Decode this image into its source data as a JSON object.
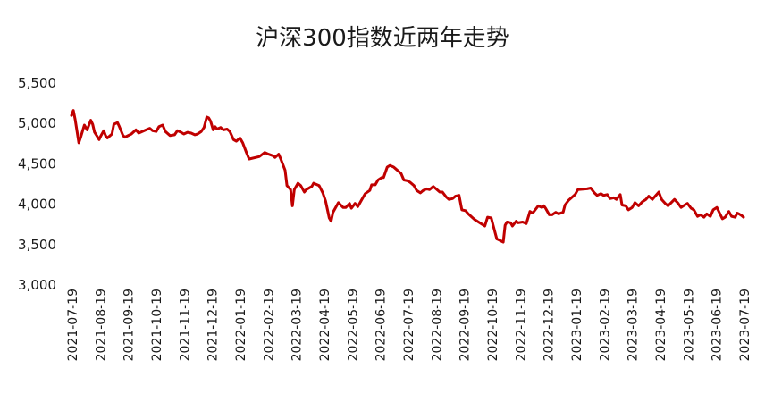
{
  "chart_data": {
    "type": "line",
    "title": "沪深300指数近两年走势",
    "xlabel": "",
    "ylabel": "",
    "ylim": [
      3000,
      5500
    ],
    "yticks": [
      3000,
      3500,
      4000,
      4500,
      5000,
      5500
    ],
    "ytick_labels": [
      "3,000",
      "3,500",
      "4,000",
      "4,500",
      "5,000",
      "5,500"
    ],
    "xlim": [
      "2021-07-19",
      "2023-07-19"
    ],
    "xtick_labels": [
      "2021-07-19",
      "2021-08-19",
      "2021-09-19",
      "2021-10-19",
      "2021-11-19",
      "2021-12-19",
      "2022-01-19",
      "2022-02-19",
      "2022-03-19",
      "2022-04-19",
      "2022-05-19",
      "2022-06-19",
      "2022-07-19",
      "2022-08-19",
      "2022-09-19",
      "2022-10-19",
      "2022-11-19",
      "2022-12-19",
      "2023-01-19",
      "2023-02-19",
      "2023-03-19",
      "2023-04-19",
      "2023-05-19",
      "2023-06-19",
      "2023-07-19"
    ],
    "grid": false,
    "legend": "none",
    "series": [
      {
        "color": "#c00000",
        "points": [
          [
            "2021-07-19",
            5100
          ],
          [
            "2021-07-21",
            5160
          ],
          [
            "2021-07-23",
            5050
          ],
          [
            "2021-07-27",
            4760
          ],
          [
            "2021-07-29",
            4830
          ],
          [
            "2021-08-02",
            4980
          ],
          [
            "2021-08-05",
            4920
          ],
          [
            "2021-08-09",
            5040
          ],
          [
            "2021-08-11",
            4990
          ],
          [
            "2021-08-13",
            4890
          ],
          [
            "2021-08-16",
            4840
          ],
          [
            "2021-08-18",
            4800
          ],
          [
            "2021-08-20",
            4850
          ],
          [
            "2021-08-23",
            4910
          ],
          [
            "2021-08-25",
            4850
          ],
          [
            "2021-08-27",
            4820
          ],
          [
            "2021-09-01",
            4870
          ],
          [
            "2021-09-03",
            4990
          ],
          [
            "2021-09-07",
            5010
          ],
          [
            "2021-09-09",
            4960
          ],
          [
            "2021-09-13",
            4850
          ],
          [
            "2021-09-15",
            4830
          ],
          [
            "2021-09-22",
            4870
          ],
          [
            "2021-09-27",
            4920
          ],
          [
            "2021-09-30",
            4880
          ],
          [
            "2021-10-08",
            4920
          ],
          [
            "2021-10-12",
            4940
          ],
          [
            "2021-10-15",
            4910
          ],
          [
            "2021-10-19",
            4900
          ],
          [
            "2021-10-22",
            4960
          ],
          [
            "2021-10-26",
            4980
          ],
          [
            "2021-10-29",
            4900
          ],
          [
            "2021-11-03",
            4850
          ],
          [
            "2021-11-08",
            4860
          ],
          [
            "2021-11-11",
            4910
          ],
          [
            "2021-11-15",
            4890
          ],
          [
            "2021-11-18",
            4870
          ],
          [
            "2021-11-22",
            4890
          ],
          [
            "2021-11-26",
            4880
          ],
          [
            "2021-11-30",
            4860
          ],
          [
            "2021-12-03",
            4870
          ],
          [
            "2021-12-07",
            4900
          ],
          [
            "2021-12-10",
            4950
          ],
          [
            "2021-12-13",
            5080
          ],
          [
            "2021-12-15",
            5070
          ],
          [
            "2021-12-17",
            5030
          ],
          [
            "2021-12-20",
            4920
          ],
          [
            "2021-12-22",
            4960
          ],
          [
            "2021-12-24",
            4930
          ],
          [
            "2021-12-28",
            4950
          ],
          [
            "2021-12-31",
            4920
          ],
          [
            "2022-01-04",
            4930
          ],
          [
            "2022-01-07",
            4900
          ],
          [
            "2022-01-11",
            4800
          ],
          [
            "2022-01-14",
            4780
          ],
          [
            "2022-01-18",
            4820
          ],
          [
            "2022-01-21",
            4760
          ],
          [
            "2022-01-25",
            4640
          ],
          [
            "2022-01-28",
            4560
          ],
          [
            "2022-02-08",
            4590
          ],
          [
            "2022-02-14",
            4640
          ],
          [
            "2022-02-18",
            4620
          ],
          [
            "2022-02-23",
            4600
          ],
          [
            "2022-02-25",
            4580
          ],
          [
            "2022-03-01",
            4620
          ],
          [
            "2022-03-03",
            4570
          ],
          [
            "2022-03-08",
            4420
          ],
          [
            "2022-03-10",
            4230
          ],
          [
            "2022-03-14",
            4180
          ],
          [
            "2022-03-16",
            3980
          ],
          [
            "2022-03-18",
            4180
          ],
          [
            "2022-03-22",
            4260
          ],
          [
            "2022-03-25",
            4230
          ],
          [
            "2022-03-29",
            4150
          ],
          [
            "2022-03-31",
            4180
          ],
          [
            "2022-04-06",
            4220
          ],
          [
            "2022-04-08",
            4260
          ],
          [
            "2022-04-12",
            4240
          ],
          [
            "2022-04-14",
            4230
          ],
          [
            "2022-04-18",
            4140
          ],
          [
            "2022-04-21",
            4040
          ],
          [
            "2022-04-25",
            3830
          ],
          [
            "2022-04-27",
            3790
          ],
          [
            "2022-04-29",
            3900
          ],
          [
            "2022-05-05",
            4020
          ],
          [
            "2022-05-10",
            3960
          ],
          [
            "2022-05-13",
            3960
          ],
          [
            "2022-05-17",
            4010
          ],
          [
            "2022-05-19",
            3950
          ],
          [
            "2022-05-23",
            4010
          ],
          [
            "2022-05-26",
            3970
          ],
          [
            "2022-05-31",
            4070
          ],
          [
            "2022-06-03",
            4130
          ],
          [
            "2022-06-08",
            4170
          ],
          [
            "2022-06-10",
            4240
          ],
          [
            "2022-06-14",
            4240
          ],
          [
            "2022-06-17",
            4300
          ],
          [
            "2022-06-21",
            4330
          ],
          [
            "2022-06-23",
            4330
          ],
          [
            "2022-06-27",
            4460
          ],
          [
            "2022-06-30",
            4480
          ],
          [
            "2022-07-04",
            4460
          ],
          [
            "2022-07-06",
            4440
          ],
          [
            "2022-07-08",
            4420
          ],
          [
            "2022-07-12",
            4380
          ],
          [
            "2022-07-15",
            4300
          ],
          [
            "2022-07-19",
            4290
          ],
          [
            "2022-07-22",
            4270
          ],
          [
            "2022-07-26",
            4230
          ],
          [
            "2022-07-29",
            4170
          ],
          [
            "2022-08-02",
            4140
          ],
          [
            "2022-08-05",
            4170
          ],
          [
            "2022-08-09",
            4190
          ],
          [
            "2022-08-12",
            4180
          ],
          [
            "2022-08-16",
            4220
          ],
          [
            "2022-08-19",
            4190
          ],
          [
            "2022-08-23",
            4150
          ],
          [
            "2022-08-26",
            4150
          ],
          [
            "2022-08-30",
            4090
          ],
          [
            "2022-09-02",
            4060
          ],
          [
            "2022-09-06",
            4070
          ],
          [
            "2022-09-09",
            4100
          ],
          [
            "2022-09-13",
            4110
          ],
          [
            "2022-09-16",
            3930
          ],
          [
            "2022-09-20",
            3920
          ],
          [
            "2022-09-23",
            3880
          ],
          [
            "2022-09-28",
            3830
          ],
          [
            "2022-09-30",
            3810
          ],
          [
            "2022-10-11",
            3730
          ],
          [
            "2022-10-14",
            3840
          ],
          [
            "2022-10-18",
            3830
          ],
          [
            "2022-10-20",
            3740
          ],
          [
            "2022-10-24",
            3570
          ],
          [
            "2022-10-26",
            3560
          ],
          [
            "2022-10-31",
            3530
          ],
          [
            "2022-11-02",
            3740
          ],
          [
            "2022-11-04",
            3780
          ],
          [
            "2022-11-08",
            3770
          ],
          [
            "2022-11-10",
            3730
          ],
          [
            "2022-11-14",
            3790
          ],
          [
            "2022-11-16",
            3770
          ],
          [
            "2022-11-21",
            3780
          ],
          [
            "2022-11-25",
            3760
          ],
          [
            "2022-11-29",
            3910
          ],
          [
            "2022-12-02",
            3890
          ],
          [
            "2022-12-06",
            3950
          ],
          [
            "2022-12-08",
            3980
          ],
          [
            "2022-12-12",
            3960
          ],
          [
            "2022-12-14",
            3980
          ],
          [
            "2022-12-16",
            3950
          ],
          [
            "2022-12-20",
            3870
          ],
          [
            "2022-12-23",
            3870
          ],
          [
            "2022-12-27",
            3900
          ],
          [
            "2022-12-30",
            3880
          ],
          [
            "2023-01-04",
            3900
          ],
          [
            "2023-01-06",
            3990
          ],
          [
            "2023-01-10",
            4050
          ],
          [
            "2023-01-13",
            4080
          ],
          [
            "2023-01-17",
            4120
          ],
          [
            "2023-01-20",
            4180
          ],
          [
            "2023-01-30",
            4190
          ],
          [
            "2023-02-03",
            4200
          ],
          [
            "2023-02-07",
            4140
          ],
          [
            "2023-02-10",
            4110
          ],
          [
            "2023-02-14",
            4130
          ],
          [
            "2023-02-17",
            4110
          ],
          [
            "2023-02-21",
            4120
          ],
          [
            "2023-02-24",
            4070
          ],
          [
            "2023-02-28",
            4080
          ],
          [
            "2023-03-03",
            4060
          ],
          [
            "2023-03-07",
            4120
          ],
          [
            "2023-03-09",
            3990
          ],
          [
            "2023-03-13",
            3980
          ],
          [
            "2023-03-16",
            3930
          ],
          [
            "2023-03-20",
            3960
          ],
          [
            "2023-03-23",
            4020
          ],
          [
            "2023-03-27",
            3980
          ],
          [
            "2023-03-31",
            4030
          ],
          [
            "2023-04-04",
            4060
          ],
          [
            "2023-04-07",
            4100
          ],
          [
            "2023-04-11",
            4060
          ],
          [
            "2023-04-14",
            4100
          ],
          [
            "2023-04-18",
            4150
          ],
          [
            "2023-04-21",
            4060
          ],
          [
            "2023-04-25",
            4010
          ],
          [
            "2023-04-28",
            3980
          ],
          [
            "2023-05-05",
            4060
          ],
          [
            "2023-05-09",
            4010
          ],
          [
            "2023-05-12",
            3960
          ],
          [
            "2023-05-16",
            3990
          ],
          [
            "2023-05-19",
            4010
          ],
          [
            "2023-05-23",
            3950
          ],
          [
            "2023-05-26",
            3930
          ],
          [
            "2023-05-30",
            3850
          ],
          [
            "2023-06-02",
            3870
          ],
          [
            "2023-06-06",
            3840
          ],
          [
            "2023-06-09",
            3880
          ],
          [
            "2023-06-13",
            3850
          ],
          [
            "2023-06-16",
            3930
          ],
          [
            "2023-06-20",
            3960
          ],
          [
            "2023-06-26",
            3820
          ],
          [
            "2023-06-29",
            3840
          ],
          [
            "2023-07-03",
            3910
          ],
          [
            "2023-07-06",
            3850
          ],
          [
            "2023-07-10",
            3840
          ],
          [
            "2023-07-12",
            3890
          ],
          [
            "2023-07-14",
            3880
          ],
          [
            "2023-07-17",
            3860
          ],
          [
            "2023-07-19",
            3840
          ]
        ]
      }
    ]
  }
}
